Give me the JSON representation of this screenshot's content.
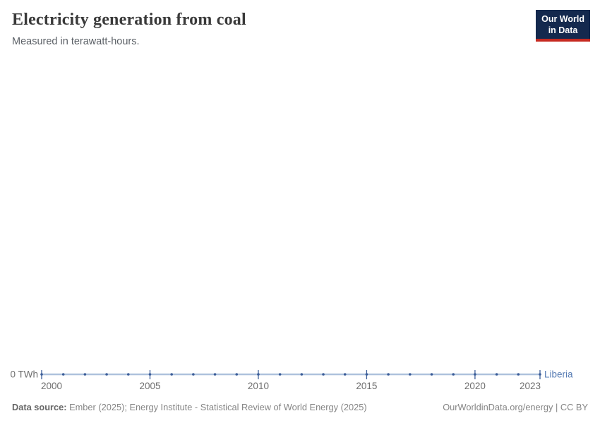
{
  "header": {
    "title": "Electricity generation from coal",
    "subtitle": "Measured in terawatt-hours."
  },
  "logo": {
    "line1": "Our World",
    "line2": "in Data",
    "bg_color": "#14294e",
    "accent_color": "#c62a21"
  },
  "chart_data": {
    "type": "line",
    "title": "Electricity generation from coal",
    "subtitle": "Measured in terawatt-hours.",
    "x": [
      2000,
      2001,
      2002,
      2003,
      2004,
      2005,
      2006,
      2007,
      2008,
      2009,
      2010,
      2011,
      2012,
      2013,
      2014,
      2015,
      2016,
      2017,
      2018,
      2019,
      2020,
      2021,
      2022,
      2023
    ],
    "series": [
      {
        "name": "Liberia",
        "values": [
          0,
          0,
          0,
          0,
          0,
          0,
          0,
          0,
          0,
          0,
          0,
          0,
          0,
          0,
          0,
          0,
          0,
          0,
          0,
          0,
          0,
          0,
          0,
          0
        ]
      }
    ],
    "x_ticks": [
      2000,
      2005,
      2010,
      2015,
      2020,
      2023
    ],
    "y_tick_labels": [
      "0 TWh"
    ],
    "xlabel": "",
    "ylabel": "",
    "grid": false,
    "legend_position": "end-of-line",
    "colors": {
      "line": "#aec2dd",
      "marker": "#3c5e99",
      "entity_label": "#577cb4"
    }
  },
  "footer": {
    "source_label": "Data source:",
    "source_text": "Ember (2025); Energy Institute - Statistical Review of World Energy (2025)",
    "link_text": "OurWorldinData.org/energy | CC BY"
  }
}
